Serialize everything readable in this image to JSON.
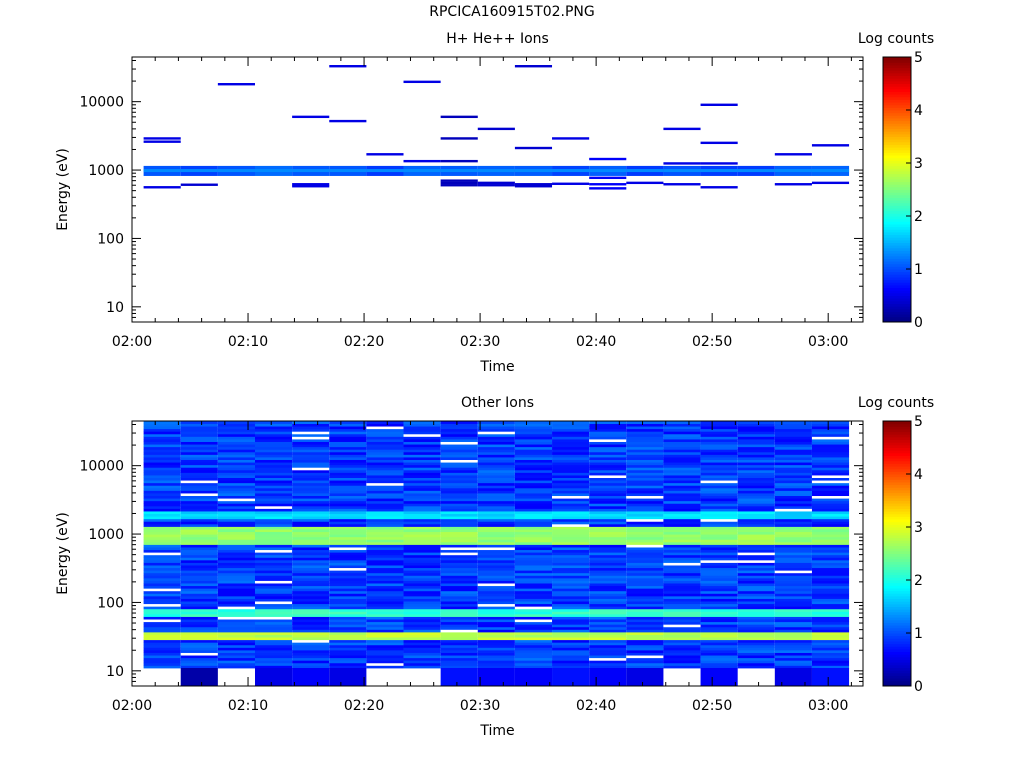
{
  "figure_title": "RPCICA160915T02.PNG",
  "colors": {
    "colormap": [
      "#00007f",
      "#0000ff",
      "#0080ff",
      "#00ffff",
      "#80ff80",
      "#ffff00",
      "#ff8000",
      "#ff0000",
      "#7f0000"
    ]
  },
  "chart_data": [
    {
      "type": "heatmap",
      "title": "H+ He++ Ions",
      "xlabel": "Time",
      "ylabel": "Energy (eV)",
      "x_ticks": [
        "02:00",
        "02:10",
        "02:20",
        "02:30",
        "02:40",
        "02:50",
        "03:00"
      ],
      "x_tick_minutes": [
        0,
        10,
        20,
        30,
        40,
        50,
        60
      ],
      "xlim_minutes": [
        0,
        63
      ],
      "y_scale": "log",
      "ylim": [
        6,
        45000
      ],
      "y_ticks": [
        "10",
        "100",
        "1000",
        "10000"
      ],
      "y_tick_values": [
        10,
        100,
        1000,
        10000
      ],
      "colorbar": {
        "label": "Log counts",
        "range": [
          0,
          5
        ],
        "ticks": [
          "0",
          "1",
          "2",
          "3",
          "4",
          "5"
        ]
      },
      "scan_start_minutes": [
        1,
        4.2,
        7.4,
        10.6,
        13.8,
        17,
        20.2,
        23.4,
        26.6,
        29.8,
        33,
        36.2,
        39.4,
        42.6,
        45.8,
        49,
        52.2,
        55.4,
        58.6
      ],
      "scan_width_minutes": 3.2,
      "band": {
        "e_min": 820,
        "e_max": 1150,
        "value": 1.0
      },
      "segments": [
        {
          "scan": 0,
          "energies": [
            2900,
            2600,
            560
          ],
          "value": 0.5
        },
        {
          "scan": 1,
          "energies": [
            610
          ],
          "value": 0.4
        },
        {
          "scan": 2,
          "energies": [
            18000
          ],
          "value": 0.5
        },
        {
          "scan": 4,
          "energies": [
            6000,
            620,
            580
          ],
          "value": 0.5
        },
        {
          "scan": 5,
          "energies": [
            33000,
            5200
          ],
          "value": 0.5
        },
        {
          "scan": 6,
          "energies": [
            1700
          ],
          "value": 0.5
        },
        {
          "scan": 7,
          "energies": [
            19500,
            1350
          ],
          "value": 0.5
        },
        {
          "scan": 8,
          "energies": [
            6000,
            2900,
            1350,
            700,
            650,
            600
          ],
          "value": 0.3
        },
        {
          "scan": 9,
          "energies": [
            4000,
            650,
            600
          ],
          "value": 0.4
        },
        {
          "scan": 10,
          "energies": [
            33000,
            2100,
            620,
            580
          ],
          "value": 0.4
        },
        {
          "scan": 11,
          "energies": [
            2900,
            630
          ],
          "value": 0.5
        },
        {
          "scan": 12,
          "energies": [
            1450,
            770,
            620,
            540
          ],
          "value": 0.6
        },
        {
          "scan": 13,
          "energies": [
            650
          ],
          "value": 0.5
        },
        {
          "scan": 14,
          "energies": [
            4000,
            1250,
            620
          ],
          "value": 0.5
        },
        {
          "scan": 15,
          "energies": [
            9000,
            2500,
            1250,
            560
          ],
          "value": 0.5
        },
        {
          "scan": 17,
          "energies": [
            1700,
            620
          ],
          "value": 0.5
        },
        {
          "scan": 18,
          "energies": [
            2300,
            650
          ],
          "value": 0.5
        }
      ]
    },
    {
      "type": "heatmap",
      "title": "Other Ions",
      "xlabel": "Time",
      "ylabel": "Energy (eV)",
      "x_ticks": [
        "02:00",
        "02:10",
        "02:20",
        "02:30",
        "02:40",
        "02:50",
        "03:00"
      ],
      "x_tick_minutes": [
        0,
        10,
        20,
        30,
        40,
        50,
        60
      ],
      "xlim_minutes": [
        0,
        63
      ],
      "y_scale": "log",
      "ylim": [
        6,
        45000
      ],
      "y_ticks": [
        "10",
        "100",
        "1000",
        "10000"
      ],
      "y_tick_values": [
        10,
        100,
        1000,
        10000
      ],
      "colorbar": {
        "label": "Log counts",
        "range": [
          0,
          5
        ],
        "ticks": [
          "0",
          "1",
          "2",
          "3",
          "4",
          "5"
        ]
      },
      "scan_start_minutes": [
        1,
        4.2,
        7.4,
        10.6,
        13.8,
        17,
        20.2,
        23.4,
        26.6,
        29.8,
        33,
        36.2,
        39.4,
        42.6,
        45.8,
        49,
        52.2,
        55.4,
        58.6
      ],
      "scan_width_minutes": 3.2,
      "energy_range": [
        11,
        45000
      ],
      "num_energy_bins": 96,
      "background_value_range": [
        0.6,
        1.2
      ],
      "bands": [
        {
          "e_min": 700,
          "e_max": 1300,
          "value": 2.6
        },
        {
          "e_min": 60,
          "e_max": 80,
          "value": 2.1
        },
        {
          "e_min": 28,
          "e_max": 38,
          "value": 2.8
        },
        {
          "e_min": 1700,
          "e_max": 2200,
          "value": 1.7
        }
      ],
      "lowest_row": {
        "e_min": 6,
        "e_max": 11,
        "values": [
          null,
          0.2,
          null,
          0.5,
          0.6,
          0.5,
          null,
          null,
          0.7,
          0.6,
          0.6,
          0.7,
          0.6,
          0.5,
          null,
          0.6,
          null,
          0.5,
          0.7
        ]
      }
    }
  ]
}
